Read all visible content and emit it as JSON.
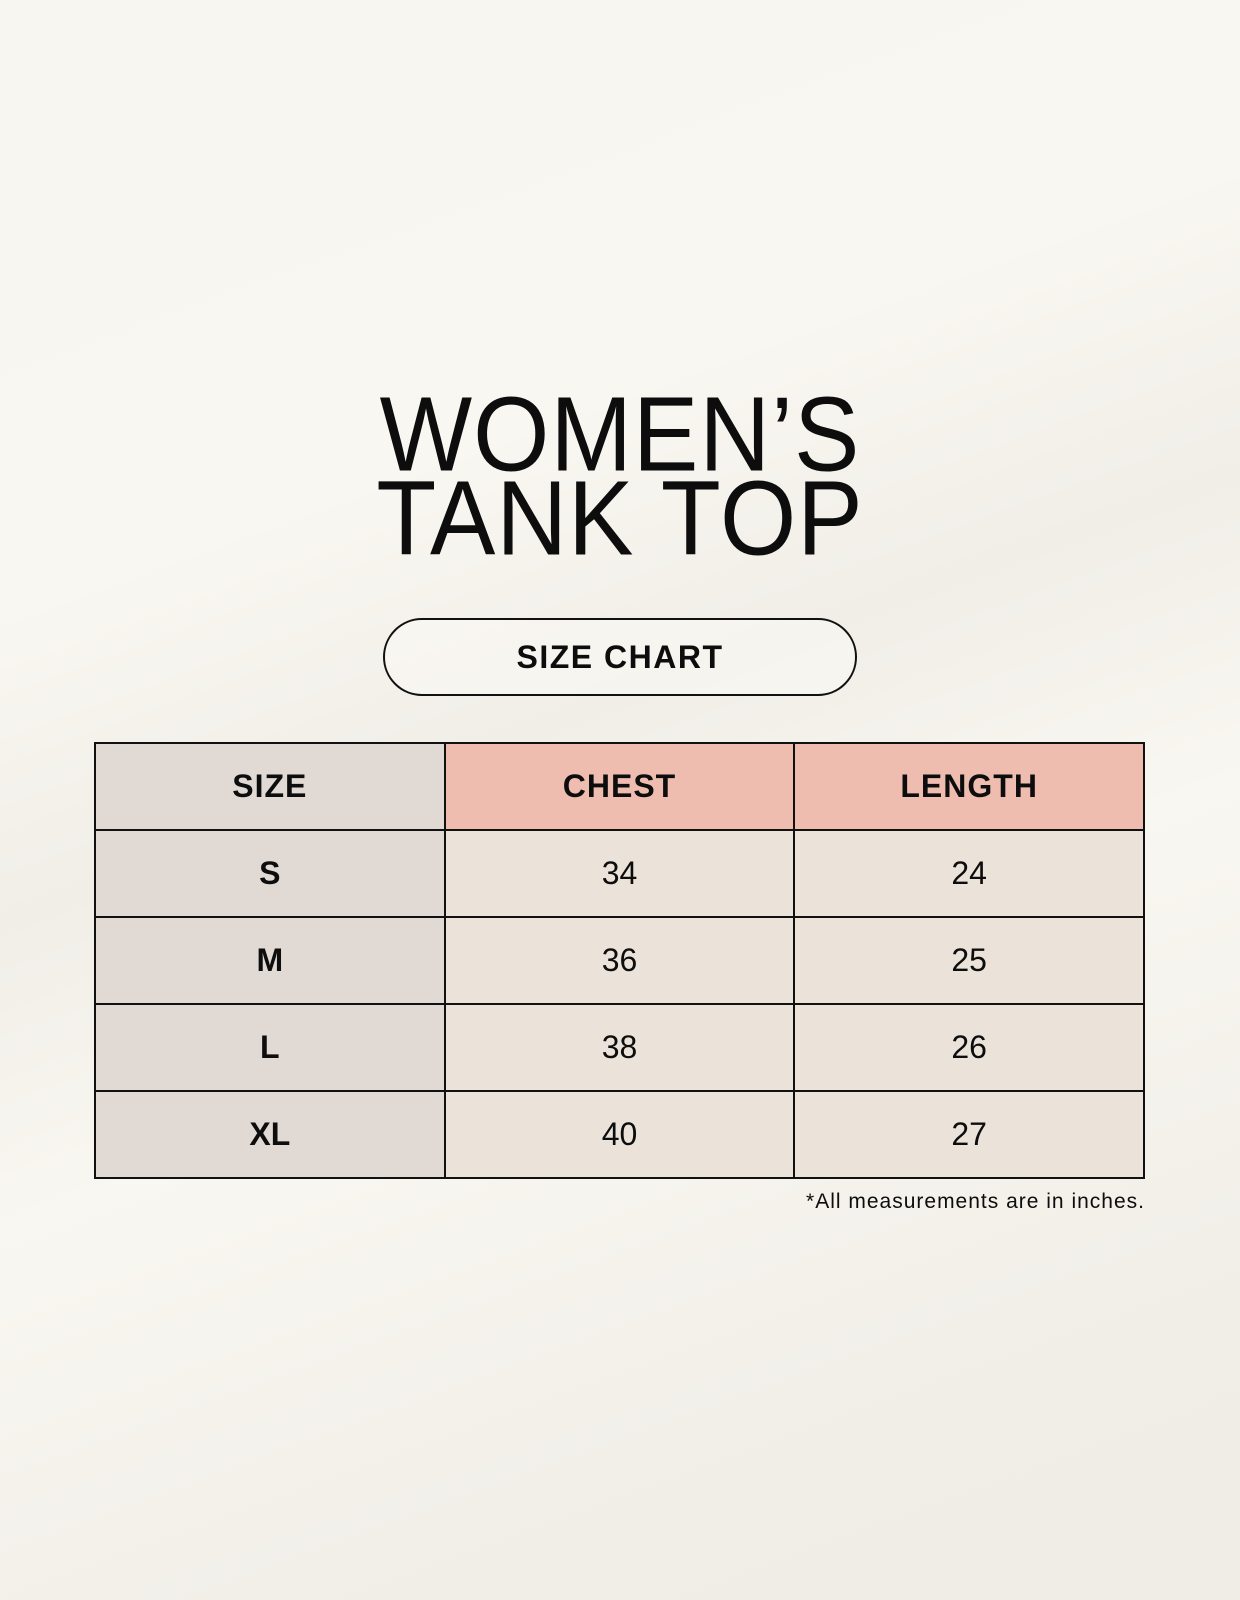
{
  "title": {
    "line1": "WOMEN’S",
    "line2": "TANK TOP"
  },
  "badge": "SIZE CHART",
  "table": {
    "headers": [
      "SIZE",
      "CHEST",
      "LENGTH"
    ],
    "rows": [
      [
        "S",
        "34",
        "24"
      ],
      [
        "M",
        "36",
        "25"
      ],
      [
        "L",
        "38",
        "26"
      ],
      [
        "XL",
        "40",
        "27"
      ]
    ]
  },
  "footnote": "*All measurements are in inches.",
  "colors": {
    "size_column": "#e1d9d4",
    "header_accent": "#efbdb0",
    "value_cells": "#ebe3d9"
  }
}
